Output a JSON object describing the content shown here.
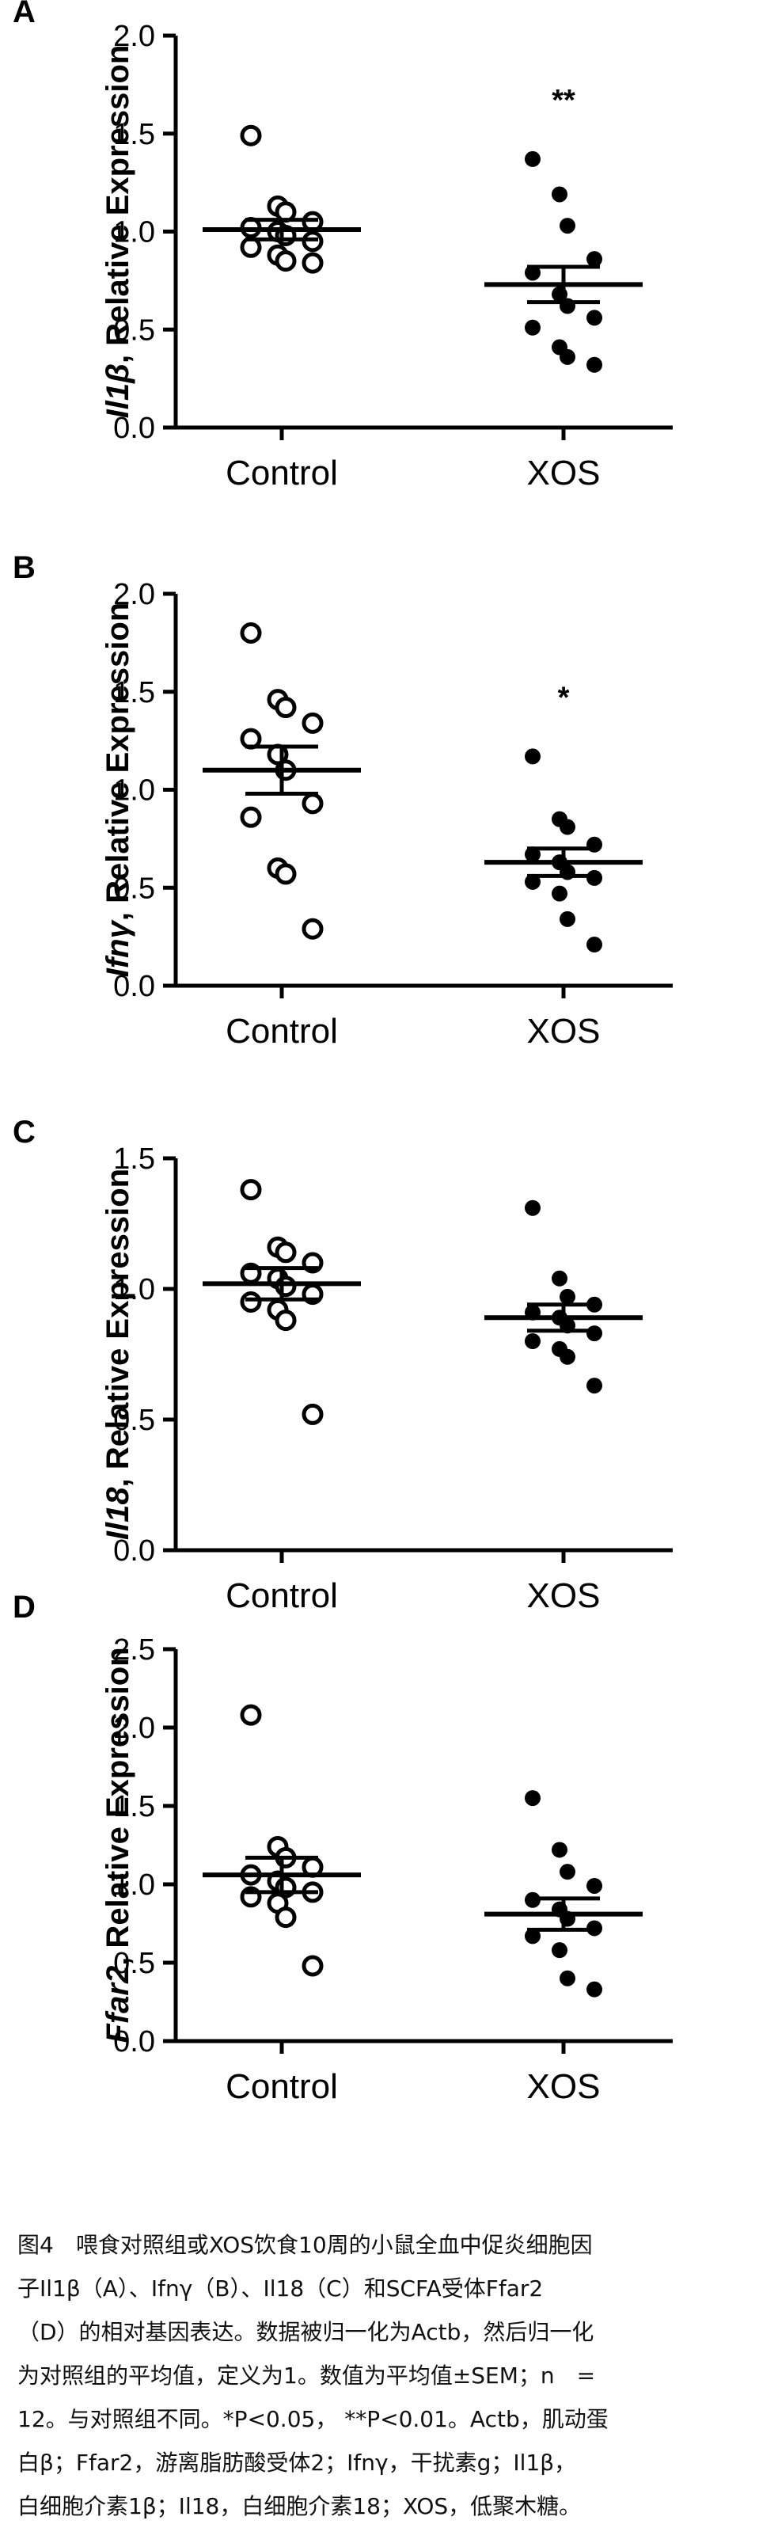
{
  "panels": [
    {
      "letter": "A",
      "ylabel_gene": "Il1β",
      "ylabel_rest": ", Relative Expression",
      "chart_data": {
        "type": "scatter",
        "title": "",
        "xlabel": "",
        "ylabel": "Il1β, Relative Expression",
        "categories": [
          "Control",
          "XOS"
        ],
        "ylim": [
          0,
          2.0
        ],
        "yticks": [
          0.0,
          0.5,
          1.0,
          1.5,
          2.0
        ],
        "tick_labels": [
          "0.0",
          "0.5",
          "1.0",
          "1.5",
          "2.0"
        ],
        "series": [
          {
            "category": "Control",
            "marker": "open",
            "values": [
              1.49,
              1.13,
              1.1,
              1.05,
              1.02,
              1.0,
              0.98,
              0.95,
              0.92,
              0.88,
              0.85,
              0.84
            ],
            "mean": 1.01,
            "sem": 0.05
          },
          {
            "category": "XOS",
            "marker": "filled",
            "values": [
              1.37,
              1.19,
              1.03,
              0.86,
              0.79,
              0.68,
              0.62,
              0.56,
              0.51,
              0.41,
              0.36,
              0.32
            ],
            "mean": 0.73,
            "sem": 0.09
          }
        ],
        "annotations": [
          {
            "category": "XOS",
            "text": "**"
          }
        ]
      }
    },
    {
      "letter": "B",
      "ylabel_gene": "Ifnγ",
      "ylabel_rest": ", Relative Expression",
      "chart_data": {
        "type": "scatter",
        "title": "",
        "xlabel": "",
        "ylabel": "Ifnγ, Relative Expression",
        "categories": [
          "Control",
          "XOS"
        ],
        "ylim": [
          0,
          2.0
        ],
        "yticks": [
          0.0,
          0.5,
          1.0,
          1.5,
          2.0
        ],
        "tick_labels": [
          "0.0",
          "0.5",
          "1.0",
          "1.5",
          "2.0"
        ],
        "series": [
          {
            "category": "Control",
            "marker": "open",
            "values": [
              1.8,
              1.46,
              1.42,
              1.34,
              1.26,
              1.18,
              1.1,
              0.93,
              0.86,
              0.6,
              0.57,
              0.29
            ],
            "mean": 1.1,
            "sem": 0.12
          },
          {
            "category": "XOS",
            "marker": "filled",
            "values": [
              1.17,
              0.85,
              0.81,
              0.72,
              0.67,
              0.63,
              0.58,
              0.55,
              0.53,
              0.47,
              0.34,
              0.21
            ],
            "mean": 0.63,
            "sem": 0.07
          }
        ],
        "annotations": [
          {
            "category": "XOS",
            "text": "*"
          }
        ]
      }
    },
    {
      "letter": "C",
      "ylabel_gene": "Il18",
      "ylabel_rest": ", Relative Expression",
      "chart_data": {
        "type": "scatter",
        "title": "",
        "xlabel": "",
        "ylabel": "Il18, Relative Expression",
        "categories": [
          "Control",
          "XOS"
        ],
        "ylim": [
          0,
          1.5
        ],
        "yticks": [
          0.0,
          0.5,
          1.0,
          1.5
        ],
        "tick_labels": [
          "0.0",
          "0.5",
          "1.0",
          "1.5"
        ],
        "series": [
          {
            "category": "Control",
            "marker": "open",
            "values": [
              1.38,
              1.16,
              1.14,
              1.1,
              1.06,
              1.04,
              1.01,
              0.98,
              0.95,
              0.92,
              0.88,
              0.52
            ],
            "mean": 1.02,
            "sem": 0.06
          },
          {
            "category": "XOS",
            "marker": "filled",
            "values": [
              1.31,
              1.04,
              0.97,
              0.94,
              0.91,
              0.89,
              0.86,
              0.83,
              0.8,
              0.77,
              0.74,
              0.63
            ],
            "mean": 0.89,
            "sem": 0.05
          }
        ],
        "annotations": []
      }
    },
    {
      "letter": "D",
      "ylabel_gene": "Ffar2",
      "ylabel_rest": ", Relative Expression",
      "chart_data": {
        "type": "scatter",
        "title": "",
        "xlabel": "",
        "ylabel": "Ffar2, Relative Expression",
        "categories": [
          "Control",
          "XOS"
        ],
        "ylim": [
          0,
          2.5
        ],
        "yticks": [
          0.0,
          0.5,
          1.0,
          1.5,
          2.0,
          2.5
        ],
        "tick_labels": [
          "0.0",
          "0.5",
          "1.0",
          "1.5",
          "2.0",
          "2.5"
        ],
        "series": [
          {
            "category": "Control",
            "marker": "open",
            "values": [
              2.08,
              1.24,
              1.17,
              1.11,
              1.06,
              1.02,
              0.98,
              0.95,
              0.92,
              0.88,
              0.79,
              0.48
            ],
            "mean": 1.06,
            "sem": 0.11
          },
          {
            "category": "XOS",
            "marker": "filled",
            "values": [
              1.55,
              1.22,
              1.08,
              0.99,
              0.9,
              0.84,
              0.78,
              0.72,
              0.67,
              0.58,
              0.4,
              0.33
            ],
            "mean": 0.81,
            "sem": 0.1
          }
        ],
        "annotations": []
      }
    }
  ],
  "caption": {
    "line1": "图4　喂食对照组或XOS饮食10周的小鼠全血中促炎细胞因",
    "line2": "子Il1β（A）、Ifnγ（B）、Il18（C）和SCFA受体Ffar2",
    "line3": "（D）的相对基因表达。数据被归一化为Actb，然后归一化",
    "line4": "为对照组的平均值，定义为1。数值为平均值±SEM；n　=",
    "line5": "12。与对照组不同。*P<0.05，  **P<0.01。Actb，肌动蛋",
    "line6": "白β；Ffar2，游离脂肪酸受体2；Ifnγ，干扰素g；Il1β，",
    "line7": "白细胞介素1β；Il18，白细胞介素18；XOS，低聚木糖。"
  },
  "colors": {
    "ink": "#000000",
    "background": "#ffffff",
    "caption_text": "#111111"
  }
}
